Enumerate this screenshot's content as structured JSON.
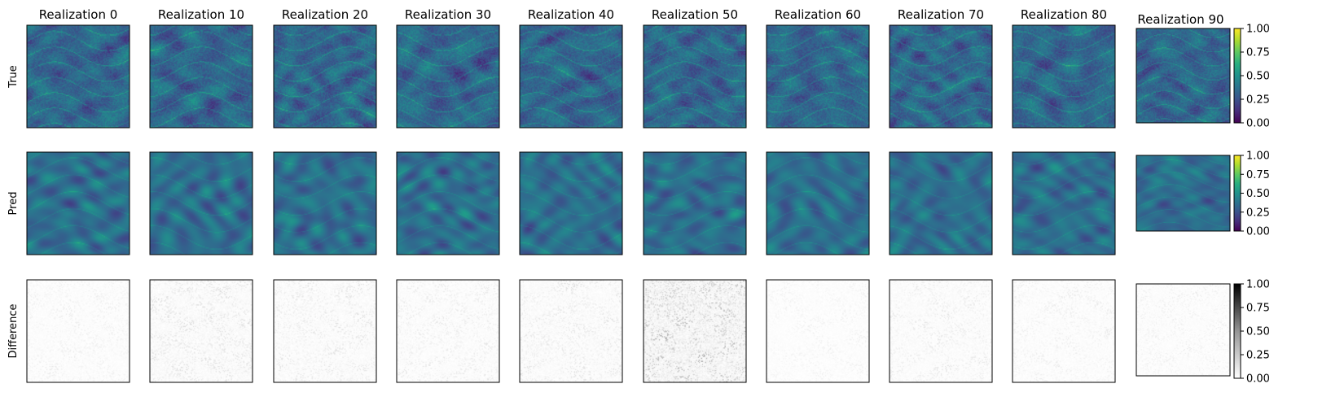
{
  "chart_data": {
    "type": "heatmap",
    "rows": [
      {
        "label": "True",
        "colormap": "viridis",
        "kind": "true"
      },
      {
        "label": "Pred",
        "colormap": "viridis",
        "kind": "pred"
      },
      {
        "label": "Difference",
        "colormap": "greys",
        "kind": "diff"
      }
    ],
    "columns": [
      {
        "title": "Realization 0",
        "seed": 0,
        "diff_level": 0.08
      },
      {
        "title": "Realization 10",
        "seed": 10,
        "diff_level": 0.14
      },
      {
        "title": "Realization 20",
        "seed": 20,
        "diff_level": 0.12
      },
      {
        "title": "Realization 30",
        "seed": 30,
        "diff_level": 0.1
      },
      {
        "title": "Realization 40",
        "seed": 40,
        "diff_level": 0.12
      },
      {
        "title": "Realization 50",
        "seed": 50,
        "diff_level": 0.3
      },
      {
        "title": "Realization 60",
        "seed": 60,
        "diff_level": 0.06
      },
      {
        "title": "Realization 70",
        "seed": 70,
        "diff_level": 0.1
      },
      {
        "title": "Realization 80",
        "seed": 80,
        "diff_level": 0.08
      },
      {
        "title": "Realization 90",
        "seed": 90,
        "diff_level": 0.08
      }
    ],
    "colorbar": {
      "range": [
        0.0,
        1.0
      ],
      "ticks": [
        "0.00",
        "0.25",
        "0.50",
        "0.75",
        "1.00"
      ]
    }
  }
}
